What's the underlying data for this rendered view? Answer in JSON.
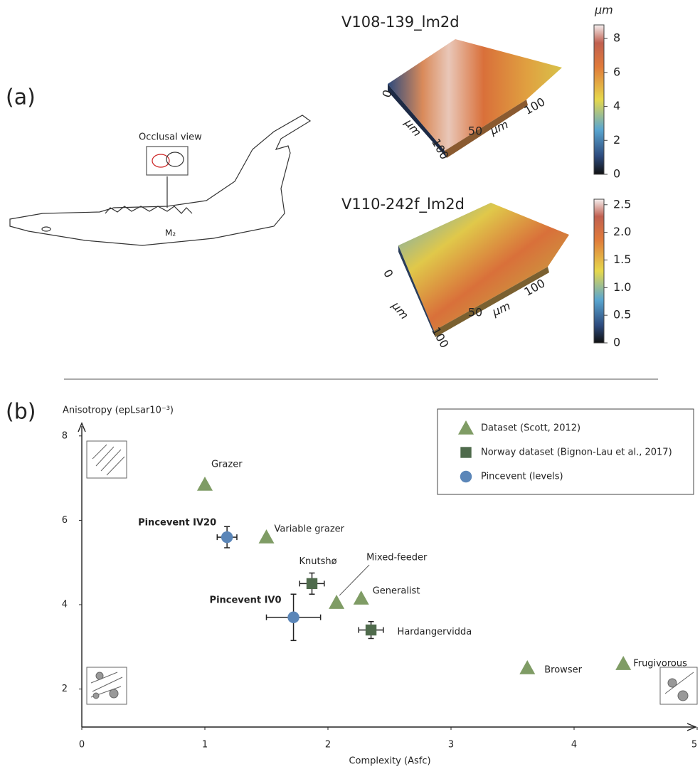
{
  "figure": {
    "panel_a_label": "(a)",
    "panel_b_label": "(b)",
    "occlusal_label": "Occlusal view",
    "tooth_label": "M₂",
    "surfaces": [
      {
        "title": "V108-139_lm2d",
        "unit": "μm",
        "lim": [
          0,
          8.8
        ],
        "ticks": [
          0,
          2,
          4,
          6,
          8
        ],
        "axis_labels": [
          "0",
          "μm",
          "100",
          "50",
          "μm",
          "100"
        ]
      },
      {
        "title": "V110-242f_lm2d",
        "lim": [
          0,
          2.6
        ],
        "ticks": [
          0,
          0.5,
          {
            "value": 1,
            "label": "1.0"
          },
          1.5,
          {
            "value": 2,
            "label": "2.0"
          },
          2.5
        ],
        "axis_labels": [
          "0",
          "μm",
          "100",
          "50",
          "μm",
          "100"
        ]
      }
    ]
  },
  "chart_data": {
    "type": "scatter",
    "x_label": "Complexity (Asfc)",
    "y_label": "Anisotropy (epLsar10⁻³)",
    "xlim": [
      0,
      5
    ],
    "ylim": [
      1.1,
      8.3
    ],
    "xticks": [
      0,
      1,
      2,
      3,
      4,
      5
    ],
    "yticks": [
      2,
      4,
      6,
      8
    ],
    "grid": false,
    "legend": "top-right",
    "series": [
      {
        "name": "Dataset (Scott, 2012)",
        "color": "#7f9c65",
        "marker": "triangle",
        "x": [
          1.0,
          1.5,
          2.07,
          2.27,
          3.62,
          4.4
        ],
        "values": [
          6.85,
          5.6,
          4.05,
          4.15,
          2.5,
          2.6
        ],
        "labels": [
          "Grazer",
          "Variable grazer",
          "Mixed-feeder",
          "Generalist",
          "Browser",
          "Frugivorous"
        ]
      },
      {
        "name": "Norway dataset (Bignon-Lau et al., 2017)",
        "color": "#4f6b4c",
        "marker": "square",
        "x": [
          1.87,
          2.35
        ],
        "values": [
          4.5,
          3.4
        ],
        "xerr": [
          0.1,
          0.1
        ],
        "yerr": [
          0.25,
          0.2
        ],
        "labels": [
          "Knutshø",
          "Hardangervidda"
        ]
      },
      {
        "name": "Pincevent (levels)",
        "color": "#5b86b8",
        "marker": "circle",
        "x": [
          1.18,
          1.72
        ],
        "values": [
          5.6,
          3.7
        ],
        "xerr": [
          0.08,
          0.22
        ],
        "yerr": [
          0.25,
          0.55
        ],
        "labels": [
          "Pincevent IV20",
          "Pincevent IV0"
        ]
      }
    ]
  }
}
